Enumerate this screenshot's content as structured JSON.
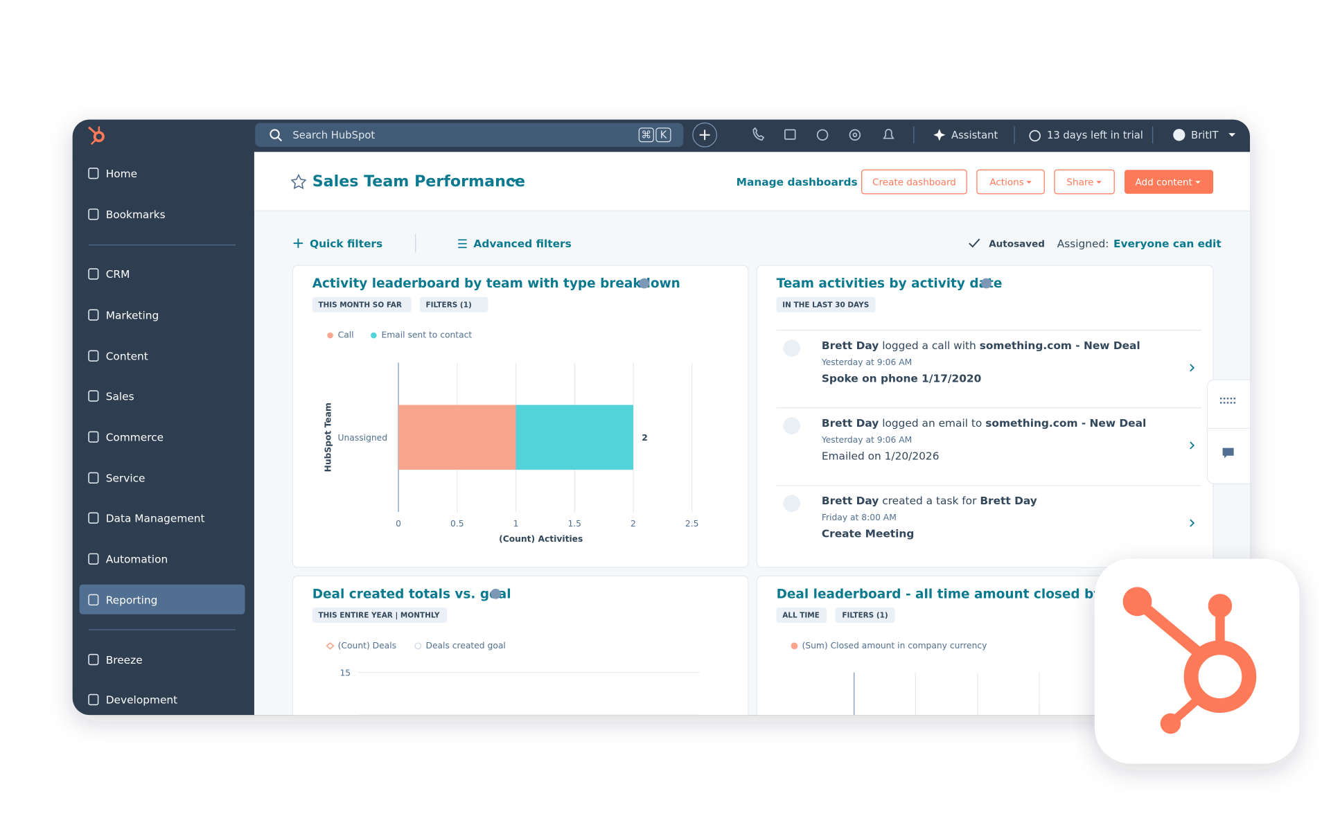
{
  "nav": {
    "items": [
      "Home",
      "Bookmarks",
      "CRM",
      "Marketing",
      "Content",
      "Sales",
      "Commerce",
      "Service",
      "Data Management",
      "Automation",
      "Reporting",
      "Breeze",
      "Development"
    ]
  },
  "topbar": {
    "search": "Search HubSpot",
    "shortcut": [
      "⌘",
      "K"
    ],
    "assistant": "Assistant",
    "trial": "13 days left in trial",
    "user": "BritIT"
  },
  "header": {
    "title": "Sales Team Performance",
    "manage": "Manage dashboards",
    "buttons": [
      "Create dashboard",
      "Actions",
      "Share",
      "Add content"
    ]
  },
  "filters": {
    "quick": "Quick filters",
    "advanced": "Advanced filters",
    "autosaved": "Autosaved",
    "assigned_label": "Assigned:",
    "assigned_value": "Everyone can edit"
  },
  "chart_data": {
    "type": "bar",
    "orientation": "horizontal",
    "stacked": true,
    "title": "Activity leaderboard by team with type breakdown",
    "tags": [
      "THIS MONTH SO FAR",
      "FILTERS (1)"
    ],
    "categories": [
      "Unassigned"
    ],
    "series": [
      {
        "name": "Call",
        "color": "#f8a58d",
        "values": [
          1
        ]
      },
      {
        "name": "Email sent to contact",
        "color": "#51d3d9",
        "values": [
          1
        ]
      }
    ],
    "total_labels": [
      "2"
    ],
    "xlim": [
      0,
      2.5
    ],
    "xticks": [
      0,
      0.5,
      1,
      1.5,
      2,
      2.5
    ],
    "xlabel": "(Count) Activities",
    "ylabel": "HubSpot Team",
    "grid": true
  },
  "activities": {
    "title": "Team activities by activity date",
    "tags": [
      "IN THE LAST 30 DAYS"
    ],
    "items": [
      {
        "actor": "Brett Day",
        "verb": "logged a call with",
        "target": "something.com - New Deal",
        "time": "Yesterday at 9:06 AM",
        "note": "Spoke on phone 1/17/2020"
      },
      {
        "actor": "Brett Day",
        "verb": "logged an email to",
        "target": "something.com - New Deal",
        "time": "Yesterday at 9:06 AM",
        "note": "Emailed on 1/20/2026"
      },
      {
        "actor": "Brett Day",
        "verb": "created a task for",
        "target": "Brett Day",
        "time": "Friday at 8:00 AM",
        "note": "Create Meeting"
      }
    ]
  },
  "deals_goal": {
    "title": "Deal created totals vs. goal",
    "tags": [
      "THIS ENTIRE YEAR | MONTHLY"
    ],
    "legend": [
      "(Count) Deals",
      "Deals created goal"
    ],
    "ytick": "15"
  },
  "deal_leaderboard": {
    "title": "Deal leaderboard - all time amount closed by rep",
    "tags": [
      "ALL TIME",
      "FILTERS (1)"
    ],
    "legend": [
      "(Sum) Closed amount in company currency"
    ]
  }
}
